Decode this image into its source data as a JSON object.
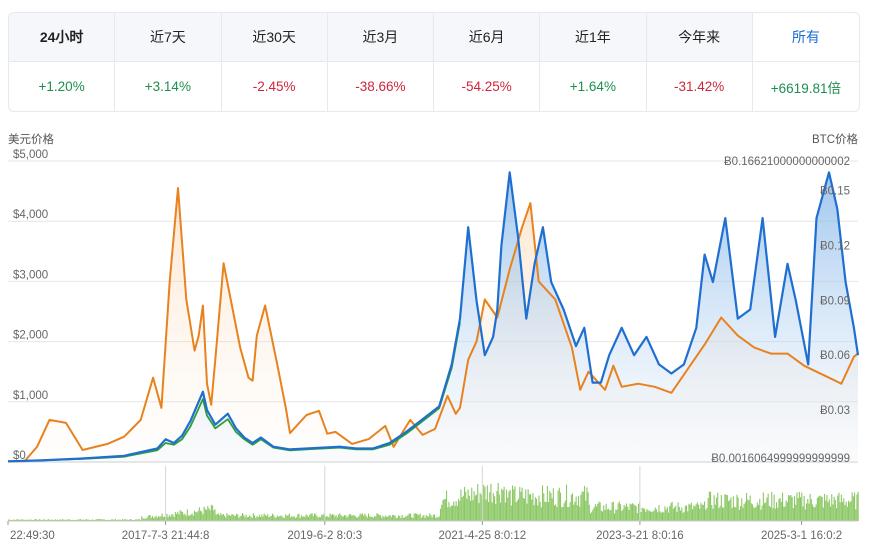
{
  "periods": [
    {
      "label": "24小时",
      "value": "+1.20%",
      "sign": "pos"
    },
    {
      "label": "近7天",
      "value": "+3.14%",
      "sign": "pos"
    },
    {
      "label": "近30天",
      "value": "-2.45%",
      "sign": "neg"
    },
    {
      "label": "近3月",
      "value": "-38.66%",
      "sign": "neg"
    },
    {
      "label": "近6月",
      "value": "-54.25%",
      "sign": "neg"
    },
    {
      "label": "近1年",
      "value": "+1.64%",
      "sign": "pos"
    },
    {
      "label": "今年来",
      "value": "-31.42%",
      "sign": "neg"
    },
    {
      "label": "所有",
      "value": "+6619.81倍",
      "sign": "pos"
    }
  ],
  "colors": {
    "usd_line": "#e8821e",
    "btc_line": "#1f6fd1",
    "green_line": "#2f9d3a",
    "volume": "#8cc865"
  },
  "chart_data": {
    "type": "line",
    "left_axis_title": "美元价格",
    "right_axis_title": "BTC价格",
    "left_ticks": [
      "$5,000",
      "$4,000",
      "$3,000",
      "$2,000",
      "$1,000",
      "$0"
    ],
    "left_tick_values": [
      5000,
      4000,
      3000,
      2000,
      1000,
      0
    ],
    "right_ticks": [
      "Ƀ0.15",
      "Ƀ0.12",
      "Ƀ0.09",
      "Ƀ0.06",
      "Ƀ0.03"
    ],
    "right_tick_values": [
      0.15,
      0.12,
      0.09,
      0.06,
      0.03
    ],
    "right_max_label": "Ƀ0.16621000000000002",
    "right_min_label": "Ƀ0.0016064999999999999",
    "right_range": [
      0.0016065,
      0.16621
    ],
    "ylim": [
      0,
      5000
    ],
    "x_labels": [
      "22:49:30",
      "2017-7-3 21:44:8",
      "2019-6-2 8:0:3",
      "2021-4-25 8:0:12",
      "2023-3-21 8:0:16",
      "2025-3-1 16:0:2"
    ],
    "x_label_years": [
      2015.6,
      2017.5,
      2019.42,
      2021.32,
      2023.22,
      2025.17
    ],
    "xlim": [
      2015.6,
      2025.85
    ],
    "series": [
      {
        "key": "usd",
        "x": [
          2015.6,
          2015.8,
          2015.95,
          2016.1,
          2016.3,
          2016.5,
          2016.8,
          2017.0,
          2017.2,
          2017.35,
          2017.45,
          2017.55,
          2017.65,
          2017.75,
          2017.85,
          2017.9,
          2017.95,
          2018.0,
          2018.05,
          2018.1,
          2018.2,
          2018.3,
          2018.4,
          2018.5,
          2018.55,
          2018.6,
          2018.7,
          2018.85,
          2018.95,
          2019.0,
          2019.2,
          2019.35,
          2019.45,
          2019.55,
          2019.75,
          2019.95,
          2020.15,
          2020.25,
          2020.45,
          2020.6,
          2020.75,
          2020.9,
          2021.0,
          2021.05,
          2021.15,
          2021.25,
          2021.35,
          2021.5,
          2021.65,
          2021.8,
          2021.9,
          2022.0,
          2022.2,
          2022.4,
          2022.5,
          2022.6,
          2022.8,
          2022.9,
          2023.0,
          2023.2,
          2023.4,
          2023.6,
          2023.8,
          2024.0,
          2024.2,
          2024.4,
          2024.6,
          2024.8,
          2025.0,
          2025.2,
          2025.35,
          2025.5,
          2025.65,
          2025.8,
          2025.85
        ],
        "y": [
          10,
          15,
          250,
          700,
          650,
          200,
          300,
          420,
          700,
          1400,
          900,
          3000,
          4550,
          2700,
          1850,
          2100,
          2600,
          1300,
          950,
          1700,
          3300,
          2600,
          1900,
          1400,
          1350,
          2100,
          2600,
          1600,
          900,
          480,
          780,
          850,
          470,
          500,
          300,
          380,
          600,
          250,
          700,
          450,
          550,
          1100,
          800,
          900,
          1700,
          2000,
          2700,
          2400,
          3200,
          3900,
          4300,
          3000,
          2700,
          1900,
          1200,
          1500,
          1200,
          1600,
          1250,
          1300,
          1250,
          1150,
          1550,
          1950,
          2400,
          2100,
          1900,
          1800,
          1800,
          1600,
          1500,
          1400,
          1300,
          1750,
          1800
        ]
      },
      {
        "key": "btc",
        "x": [
          2015.6,
          2016.0,
          2016.5,
          2017.0,
          2017.4,
          2017.5,
          2017.6,
          2017.7,
          2017.8,
          2017.95,
          2018.0,
          2018.1,
          2018.25,
          2018.35,
          2018.45,
          2018.55,
          2018.65,
          2018.8,
          2019.0,
          2019.2,
          2019.4,
          2019.6,
          2019.8,
          2020.0,
          2020.2,
          2020.4,
          2020.6,
          2020.8,
          2020.95,
          2021.05,
          2021.15,
          2021.25,
          2021.35,
          2021.45,
          2021.5,
          2021.55,
          2021.65,
          2021.75,
          2021.85,
          2021.95,
          2022.05,
          2022.15,
          2022.3,
          2022.45,
          2022.55,
          2022.65,
          2022.75,
          2022.85,
          2023.0,
          2023.15,
          2023.3,
          2023.45,
          2023.6,
          2023.75,
          2023.9,
          2024.0,
          2024.1,
          2024.25,
          2024.4,
          2024.55,
          2024.7,
          2024.85,
          2025.0,
          2025.1,
          2025.25,
          2025.35,
          2025.5,
          2025.6,
          2025.7,
          2025.8,
          2025.85
        ],
        "y": [
          0.002,
          0.0025,
          0.0035,
          0.005,
          0.009,
          0.014,
          0.012,
          0.016,
          0.024,
          0.04,
          0.03,
          0.022,
          0.028,
          0.02,
          0.015,
          0.012,
          0.015,
          0.01,
          0.0085,
          0.009,
          0.0095,
          0.01,
          0.009,
          0.009,
          0.012,
          0.018,
          0.025,
          0.032,
          0.055,
          0.08,
          0.13,
          0.09,
          0.06,
          0.07,
          0.085,
          0.12,
          0.16,
          0.125,
          0.08,
          0.11,
          0.13,
          0.1,
          0.085,
          0.065,
          0.075,
          0.045,
          0.045,
          0.06,
          0.075,
          0.06,
          0.07,
          0.055,
          0.05,
          0.055,
          0.075,
          0.115,
          0.1,
          0.135,
          0.08,
          0.085,
          0.135,
          0.07,
          0.11,
          0.09,
          0.055,
          0.135,
          0.16,
          0.14,
          0.1,
          0.075,
          0.06
        ]
      },
      {
        "key": "green",
        "x": [
          2015.6,
          2016.0,
          2016.5,
          2017.0,
          2017.4,
          2017.5,
          2017.6,
          2017.7,
          2017.8,
          2017.95,
          2018.0,
          2018.1,
          2018.25,
          2018.35,
          2018.45,
          2018.55,
          2018.65,
          2018.8,
          2019.0,
          2019.2,
          2019.4,
          2019.6,
          2019.8,
          2020.0,
          2020.2,
          2020.4,
          2020.6,
          2020.8,
          2020.95,
          2021.05
        ],
        "y": [
          0.002,
          0.0025,
          0.0033,
          0.0045,
          0.008,
          0.012,
          0.011,
          0.014,
          0.021,
          0.036,
          0.027,
          0.02,
          0.025,
          0.018,
          0.014,
          0.011,
          0.014,
          0.0095,
          0.008,
          0.0085,
          0.009,
          0.0095,
          0.0085,
          0.0085,
          0.011,
          0.017,
          0.024,
          0.031,
          0.053,
          0.078
        ]
      }
    ],
    "volume_range": [
      2015.6,
      2025.85
    ]
  }
}
